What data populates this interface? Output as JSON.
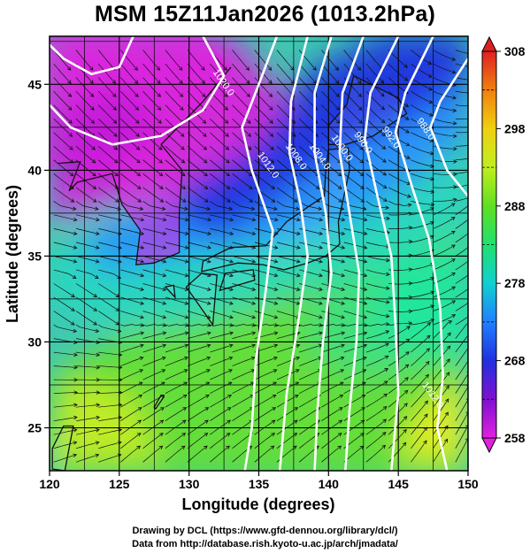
{
  "title": "MSM 15Z11Jan2026 (1013.2hPa)",
  "x_axis": {
    "label": "Longitude (degrees)",
    "range": [
      120,
      150
    ],
    "ticks": [
      120,
      125,
      130,
      135,
      140,
      145,
      150
    ]
  },
  "y_axis": {
    "label": "Latitude  (degrees)",
    "range": [
      22.5,
      47.8
    ],
    "ticks": [
      25,
      30,
      35,
      40,
      45
    ]
  },
  "colorbar": {
    "range": [
      258,
      308
    ],
    "labels": [
      258,
      268,
      278,
      288,
      298,
      308
    ],
    "colors": [
      "#e020e0",
      "#8010d0",
      "#2030e0",
      "#2080ff",
      "#10d0d0",
      "#20e070",
      "#60e020",
      "#c0ee20",
      "#f0d010",
      "#f08010",
      "#e02020"
    ]
  },
  "contours": [
    {
      "label": "1020.0",
      "lon": 132.3,
      "lat": 45.0
    },
    {
      "label": "1012.0",
      "lon": 135.5,
      "lat": 40.2
    },
    {
      "label": "1008.0",
      "lon": 137.5,
      "lat": 40.7
    },
    {
      "label": "1004.0",
      "lon": 139.2,
      "lat": 40.7
    },
    {
      "label": "1000.0",
      "lon": 140.8,
      "lat": 41.2
    },
    {
      "label": "996.0",
      "lon": 142.3,
      "lat": 41.5
    },
    {
      "label": "992.0",
      "lon": 144.3,
      "lat": 41.8
    },
    {
      "label": "988.0",
      "lon": 146.8,
      "lat": 42.3
    },
    {
      "label": "1012.0",
      "lon": 147.3,
      "lat": 26.8
    }
  ],
  "credits": [
    "Drawing by DCL (https://www.gfd-dennou.org/library/dcl/)",
    "Data from http://database.rish.kyoto-u.ac.jp/arch/jmadata/"
  ]
}
